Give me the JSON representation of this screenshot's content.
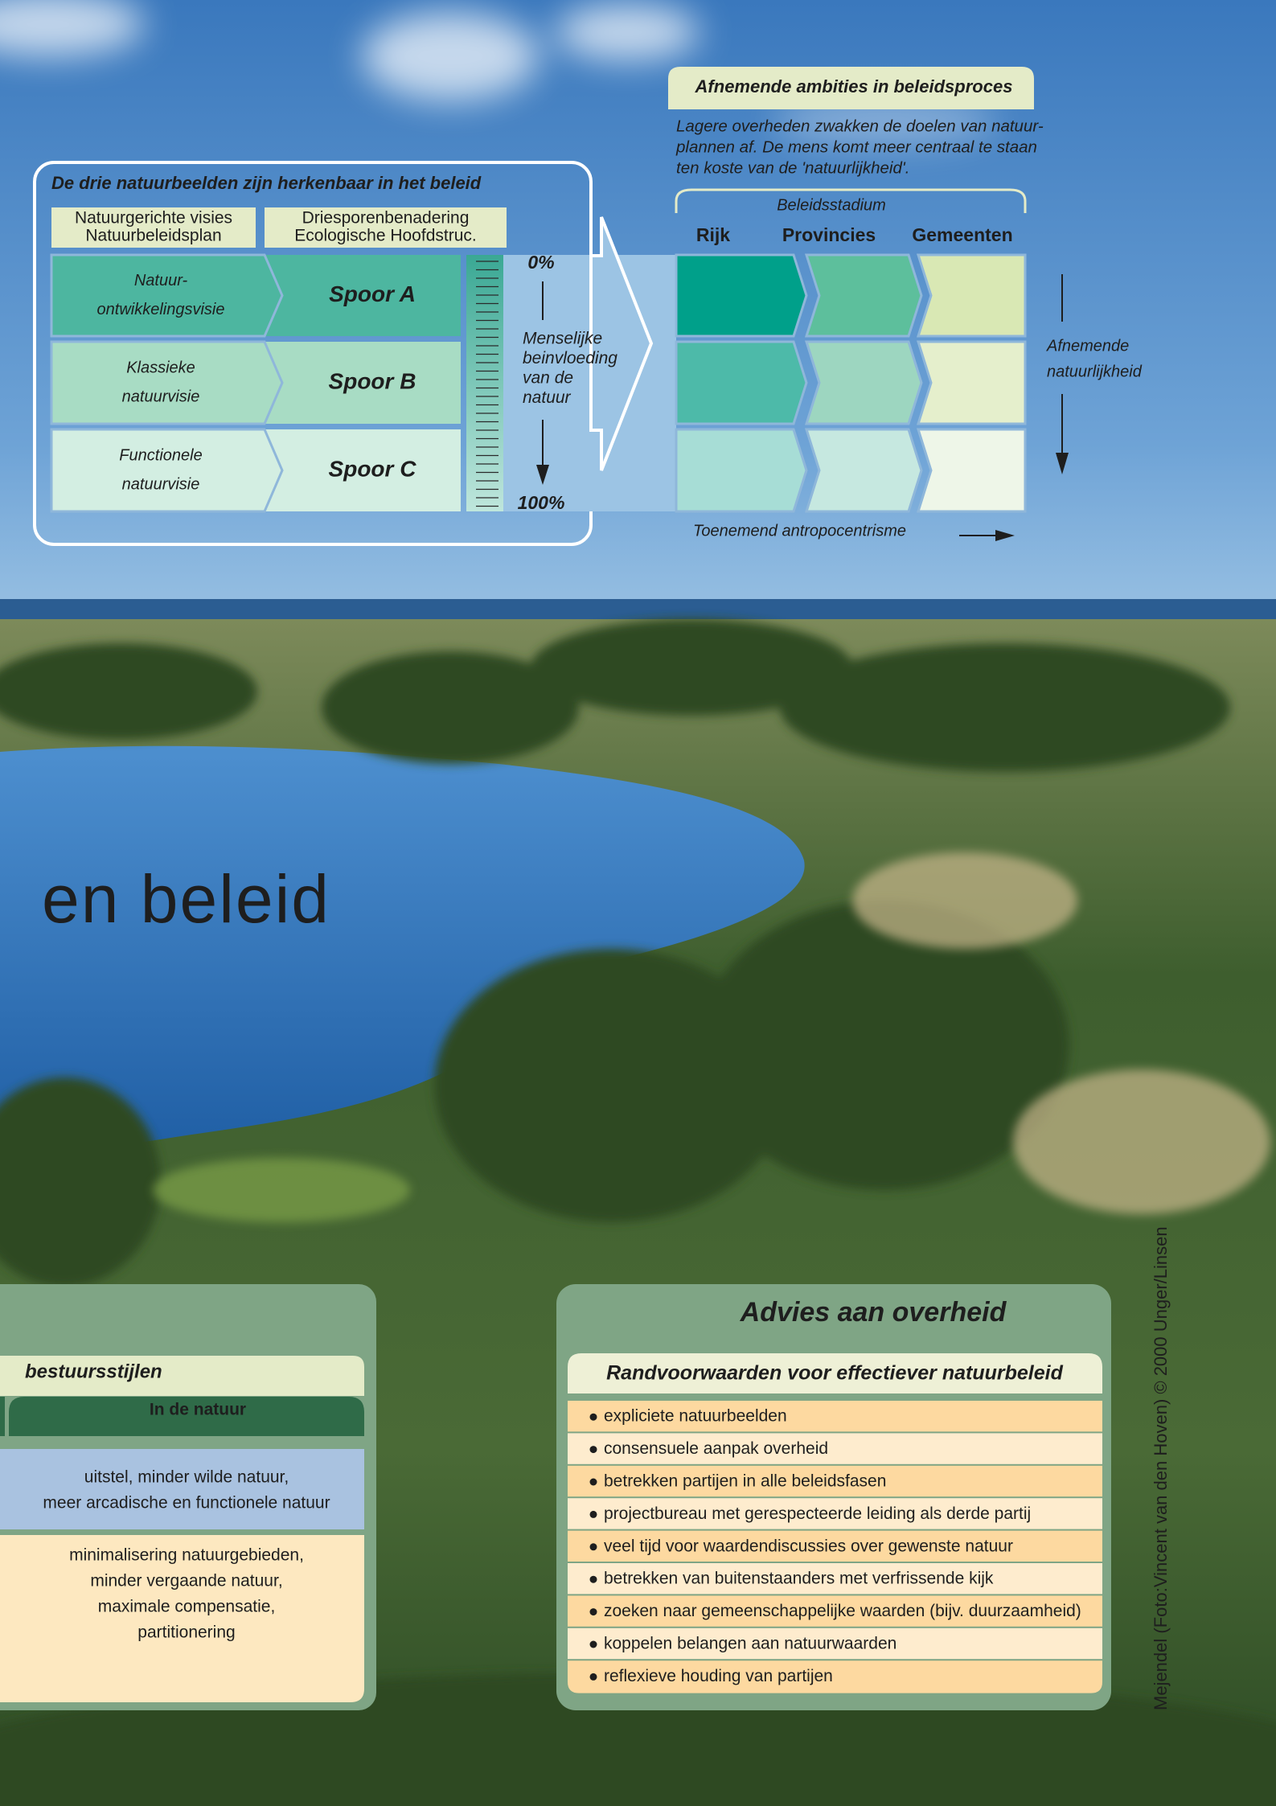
{
  "diagram": {
    "title": "De drie natuurbeelden zijn herkenbaar in het beleid",
    "headers": [
      [
        "Natuurgerichte visies",
        "Natuurbeleidsplan"
      ],
      [
        "Driesporenbenadering",
        "Ecologische Hoofdstruc."
      ]
    ],
    "rows": [
      {
        "vision": [
          "Natuur-",
          "ontwikkelingsvisie"
        ],
        "track": "Spoor A"
      },
      {
        "vision": [
          "Klassieke",
          "natuurvisie"
        ],
        "track": "Spoor B"
      },
      {
        "vision": [
          "Functionele",
          "natuurvisie"
        ],
        "track": "Spoor C"
      }
    ],
    "scale": {
      "top": "0%",
      "bottom": "100%",
      "label": [
        "Menselijke",
        "beinvloeding",
        "van de",
        "natuur"
      ]
    }
  },
  "policy": {
    "title": "Afnemende ambities in beleidsproces",
    "description": [
      "Lagere overheden zwakken de doelen van natuur-",
      "plannen af. De mens komt meer centraal te staan",
      "ten koste van de 'natuurlijkheid'."
    ],
    "stage_label": "Beleidsstadium",
    "columns": [
      "Rijk",
      "Provincies",
      "Gemeenten"
    ],
    "vertical_label": [
      "Afnemende",
      "natuurlijkheid"
    ],
    "horizontal_label": "Toenemend antropocentrisme"
  },
  "heading": "en beleid",
  "styles_panel": {
    "subtitle": "bestuursstijlen",
    "column": "In de natuur",
    "cells": [
      [
        "uitstel, minder wilde natuur,",
        "meer arcadische en functionele natuur"
      ],
      [
        "minimalisering natuurgebieden,",
        "minder vergaande natuur,",
        "maximale compensatie,",
        "partitionering"
      ]
    ]
  },
  "advice_panel": {
    "title": "Advies aan overheid",
    "subtitle": "Randvoorwaarden voor effectiever natuurbeleid",
    "items": [
      "expliciete natuurbeelden",
      "consensuele aanpak overheid",
      "betrekken partijen in alle beleidsfasen",
      "projectbureau met gerespecteerde leiding als derde partij",
      "veel tijd voor waardendiscussies over gewenste natuur",
      "betrekken van buitenstaanders met verfrissende kijk",
      "zoeken naar gemeenschappelijke waarden (bijv. duurzaamheid)",
      "koppelen belangen aan natuurwaarden",
      "reflexieve houding van partijen"
    ]
  },
  "credit": "Mejendel (Foto:Vincent van den Hoven) © 2000 Unger/Linsen"
}
